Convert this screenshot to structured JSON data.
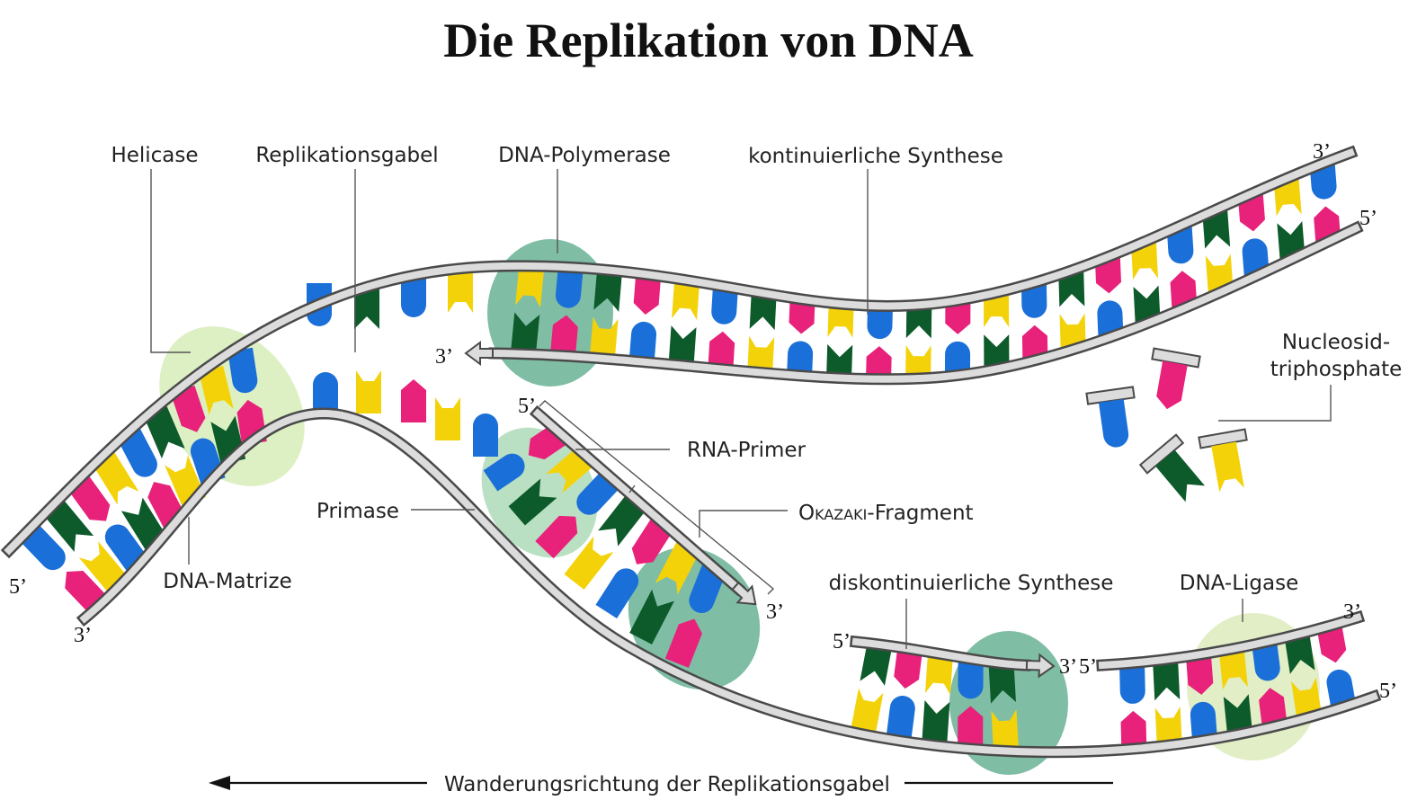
{
  "title": "Die Replikation von DNA",
  "labels": {
    "helicase": "Helicase",
    "fork": "Replikationsgabel",
    "polymerase": "DNA-Polymerase",
    "continuous": "kontinuierliche Synthese",
    "nucleoside_1": "Nucleosid-",
    "nucleoside_2": "triphosphate",
    "rna_primer": "RNA-Primer",
    "primase": "Primase",
    "okazaki_small": "Okazaki",
    "okazaki_rest": "-Fragment",
    "matrix": "DNA-Matrize",
    "discontinuous": "diskontinuierliche Synthese",
    "ligase": "DNA-Ligase",
    "direction": "Wanderungsrichtung der Replikationsgabel"
  },
  "ends": {
    "top_right_3": "3’",
    "top_right_5": "5’",
    "leading_3": "3’",
    "okazaki_5": "5’",
    "okazaki_3": "3’",
    "left_5": "5’",
    "left_3": "3’",
    "lag1_5": "5’",
    "lag1_3": "3’",
    "lag2_5": "5’",
    "bottom_right_3": "3’",
    "bottom_right_5": "5’"
  },
  "colors": {
    "backbone_fill": "#dcdcdc",
    "backbone_edge": "#4a4a4a",
    "base_blue": "#1a6fd8",
    "base_yellow": "#f4d20a",
    "base_pink": "#e8217a",
    "base_green": "#0d5a2a",
    "helicase_blob": "#d4ecb4",
    "polymerase_blob": "#5fae8e",
    "primase_blob": "#a9d8b4",
    "ligase_blob": "#dbeab8"
  }
}
